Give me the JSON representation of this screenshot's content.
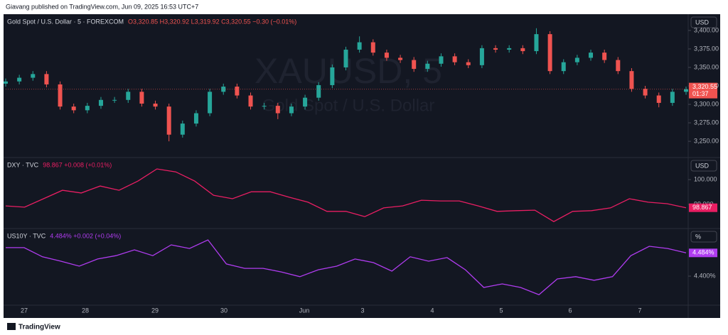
{
  "header": {
    "text": "Giavang published on TradingView.com, Jun 09, 2025 16:53 UTC+7"
  },
  "watermark": {
    "symbol": "XAUUSD, 5",
    "description": "Gold Spot / U.S. Dollar"
  },
  "chart_data": [
    {
      "type": "candlestick",
      "title": "Gold Spot / U.S. Dollar · 5 · FOREXCOM",
      "legend_values": "O3,320.85 H3,320.92 L3,319.92 C3,320.55 −0.30 (−0.01%)",
      "currency": "USD",
      "open": [
        3328,
        3331,
        3336,
        3341,
        3327,
        3297,
        3292,
        3298,
        3306,
        3306,
        3317,
        3301,
        3297,
        3259,
        3274,
        3288,
        3317,
        3324,
        3312,
        3297,
        3298,
        3288,
        3297,
        3309,
        3326,
        3350,
        3374,
        3384,
        3370,
        3363,
        3360,
        3348,
        3355,
        3365,
        3357,
        3353,
        3376,
        3374,
        3376,
        3372,
        3395,
        3345,
        3357,
        3363,
        3370,
        3360,
        3345,
        3321,
        3312,
        3302,
        3317
      ],
      "high": [
        3335,
        3340,
        3345,
        3345,
        3331,
        3301,
        3302,
        3310,
        3310,
        3321,
        3321,
        3305,
        3301,
        3278,
        3292,
        3321,
        3328,
        3328,
        3316,
        3302,
        3302,
        3301,
        3313,
        3330,
        3354,
        3378,
        3392,
        3388,
        3374,
        3367,
        3364,
        3359,
        3369,
        3369,
        3361,
        3380,
        3380,
        3380,
        3380,
        3403,
        3399,
        3361,
        3367,
        3374,
        3374,
        3364,
        3349,
        3325,
        3316,
        3321,
        3324
      ],
      "low": [
        3324,
        3327,
        3332,
        3323,
        3293,
        3288,
        3288,
        3294,
        3302,
        3302,
        3297,
        3293,
        3250,
        3255,
        3270,
        3284,
        3313,
        3308,
        3293,
        3293,
        3280,
        3284,
        3293,
        3305,
        3322,
        3346,
        3370,
        3366,
        3359,
        3356,
        3344,
        3344,
        3351,
        3353,
        3349,
        3349,
        3370,
        3370,
        3368,
        3368,
        3341,
        3341,
        3353,
        3359,
        3356,
        3341,
        3317,
        3308,
        3296,
        3298,
        3313
      ],
      "close": [
        3331,
        3336,
        3341,
        3327,
        3297,
        3292,
        3298,
        3306,
        3306,
        3317,
        3301,
        3297,
        3259,
        3274,
        3288,
        3317,
        3324,
        3312,
        3297,
        3298,
        3288,
        3297,
        3309,
        3326,
        3350,
        3374,
        3384,
        3370,
        3363,
        3360,
        3348,
        3355,
        3365,
        3357,
        3353,
        3376,
        3374,
        3376,
        3372,
        3395,
        3345,
        3357,
        3363,
        3370,
        3360,
        3345,
        3321,
        3312,
        3302,
        3317,
        3320.55
      ],
      "up_color": "#26a69a",
      "down_color": "#ef5350",
      "ylim": [
        3228,
        3422
      ],
      "yticks": [
        {
          "value": 3250,
          "label": "3,250.00"
        },
        {
          "value": 3275,
          "label": "3,275.00"
        },
        {
          "value": 3300,
          "label": "3,300.00"
        },
        {
          "value": 3325,
          "label": "3,325.00"
        },
        {
          "value": 3350,
          "label": "3,350.00"
        },
        {
          "value": 3375,
          "label": "3,375.00"
        },
        {
          "value": 3400,
          "label": "3,400.00"
        }
      ],
      "last_value_label": "3,320.55",
      "countdown": "01:37"
    },
    {
      "type": "line",
      "title": "DXY · TVC",
      "legend_values": "98.867 +0.008 (+0.01%)",
      "currency": "USD",
      "color": "#e91e63",
      "values": [
        98.94,
        98.89,
        99.23,
        99.57,
        99.46,
        99.74,
        99.57,
        99.94,
        100.43,
        100.31,
        99.94,
        99.37,
        99.23,
        99.51,
        99.51,
        99.29,
        99.09,
        98.72,
        98.72,
        98.51,
        98.86,
        98.94,
        99.17,
        99.14,
        99.14,
        98.94,
        98.72,
        98.75,
        98.77,
        98.31,
        98.72,
        98.75,
        98.86,
        99.23,
        99.09,
        99.03,
        98.867
      ],
      "ylim": [
        98.03,
        100.886
      ],
      "yticks": [
        {
          "value": 99,
          "label": "99.000"
        },
        {
          "value": 100,
          "label": "100.000"
        }
      ],
      "last_value_label": "98.867"
    },
    {
      "type": "line",
      "title": "US10Y · TVC",
      "legend_values": "4.484% +0.002 (+0.04%)",
      "currency": "%",
      "color": "#b03cf0",
      "values": [
        4.503,
        4.503,
        4.47,
        4.454,
        4.436,
        4.462,
        4.474,
        4.495,
        4.474,
        4.513,
        4.5,
        4.531,
        4.444,
        4.428,
        4.428,
        4.415,
        4.398,
        4.423,
        4.436,
        4.462,
        4.449,
        4.418,
        4.47,
        4.454,
        4.467,
        4.423,
        4.359,
        4.372,
        4.359,
        4.333,
        4.39,
        4.398,
        4.385,
        4.398,
        4.474,
        4.508,
        4.5,
        4.484
      ],
      "ylim": [
        4.295,
        4.572
      ],
      "yticks": [
        {
          "value": 4.4,
          "label": "4.400%"
        }
      ],
      "last_value_label": "4.484%"
    }
  ],
  "time_axis": {
    "labels": [
      "27",
      "28",
      "29",
      "30",
      "Jun",
      "3",
      "4",
      "5",
      "6",
      "7"
    ]
  },
  "footer": {
    "brand": "TradingView"
  }
}
